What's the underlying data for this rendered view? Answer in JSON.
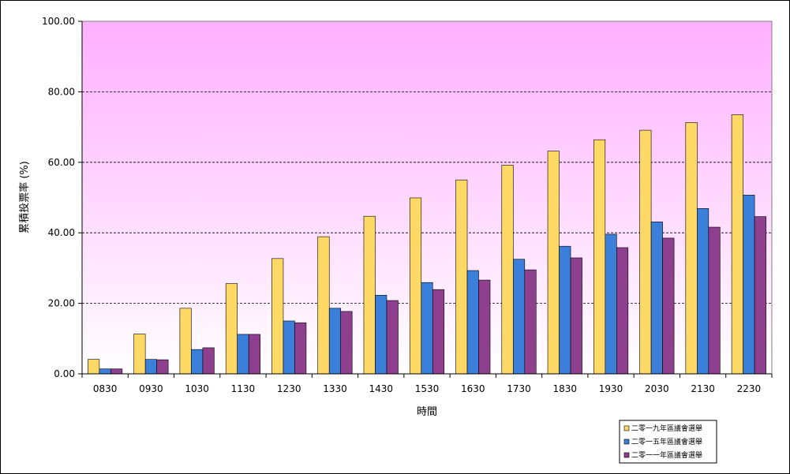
{
  "chart_data": {
    "type": "bar",
    "xlabel": "時間",
    "ylabel": "累積投票率 (%)",
    "ylim": [
      0,
      100
    ],
    "yticks": [
      "0.00",
      "20.00",
      "40.00",
      "60.00",
      "80.00",
      "100.00"
    ],
    "categories": [
      "0830",
      "0930",
      "1030",
      "1130",
      "1230",
      "1330",
      "1430",
      "1530",
      "1630",
      "1730",
      "1830",
      "1930",
      "2030",
      "2130",
      "2230"
    ],
    "grid": true,
    "legend_position": "bottom-right",
    "series": [
      {
        "name": "二零一九年區議會選舉",
        "color": "#FFD966",
        "values": [
          4.1,
          11.3,
          18.6,
          25.6,
          32.7,
          38.9,
          44.7,
          49.9,
          55.0,
          59.2,
          63.2,
          66.4,
          69.1,
          71.3,
          73.5
        ]
      },
      {
        "name": "二零一五年區議會選舉",
        "color": "#3A7FD9",
        "values": [
          1.4,
          4.1,
          6.9,
          11.2,
          15.0,
          18.6,
          22.3,
          25.9,
          29.3,
          32.5,
          36.2,
          39.6,
          43.1,
          46.9,
          50.7
        ]
      },
      {
        "name": "二零一一年區議會選舉",
        "color": "#8E3F8E",
        "values": [
          1.4,
          4.0,
          7.4,
          11.2,
          14.5,
          17.7,
          20.8,
          23.9,
          26.6,
          29.5,
          32.9,
          35.8,
          38.5,
          41.6,
          44.6
        ]
      }
    ]
  }
}
